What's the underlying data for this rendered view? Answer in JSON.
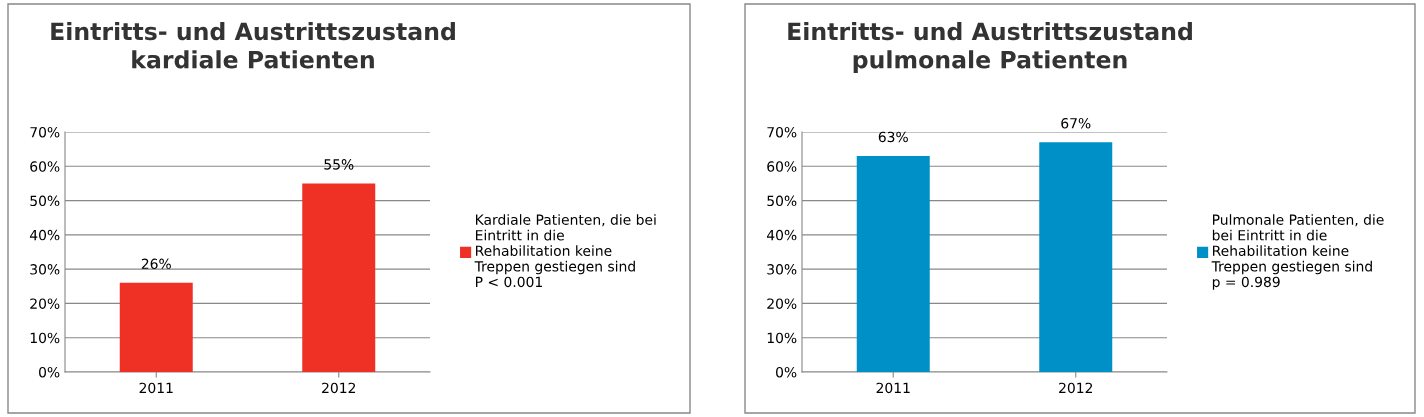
{
  "chart_data": [
    {
      "type": "bar",
      "title": "Eintritts- und Austrittszustand\nkardiale Patienten",
      "categories": [
        "2011",
        "2012"
      ],
      "series": [
        {
          "name": "Kardiale Patienten, die bei\nEintritt in die\nRehabilitation keine\nTreppen gestiegen sind\nP < 0.001",
          "color": "#ee3124",
          "values": [
            26,
            55
          ],
          "value_labels": [
            "26%",
            "55%"
          ]
        }
      ],
      "ylim": [
        0,
        70
      ],
      "yticks": [
        {
          "value": 0,
          "label": "0%"
        },
        {
          "value": 10,
          "label": "10%"
        },
        {
          "value": 20,
          "label": "20%"
        },
        {
          "value": 30,
          "label": "30%"
        },
        {
          "value": 40,
          "label": "40%"
        },
        {
          "value": 50,
          "label": "50%"
        },
        {
          "value": 60,
          "label": "60%"
        },
        {
          "value": 70,
          "label": "70%"
        }
      ],
      "grid": "y",
      "legend": "right"
    },
    {
      "type": "bar",
      "title": "Eintritts- und Austrittszustand\npulmonale Patienten",
      "categories": [
        "2011",
        "2012"
      ],
      "series": [
        {
          "name": "Pulmonale Patienten, die\nbei Eintritt in die\nRehabilitation keine\nTreppen gestiegen sind\np = 0.989",
          "color": "#0090c8",
          "values": [
            63,
            67
          ],
          "value_labels": [
            "63%",
            "67%"
          ]
        }
      ],
      "ylim": [
        0,
        70
      ],
      "yticks": [
        {
          "value": 0,
          "label": "0%"
        },
        {
          "value": 10,
          "label": "10%"
        },
        {
          "value": 20,
          "label": "20%"
        },
        {
          "value": 30,
          "label": "30%"
        },
        {
          "value": 40,
          "label": "40%"
        },
        {
          "value": 50,
          "label": "50%"
        },
        {
          "value": 60,
          "label": "60%"
        },
        {
          "value": 70,
          "label": "70%"
        }
      ],
      "grid": "y",
      "legend": "right"
    }
  ]
}
